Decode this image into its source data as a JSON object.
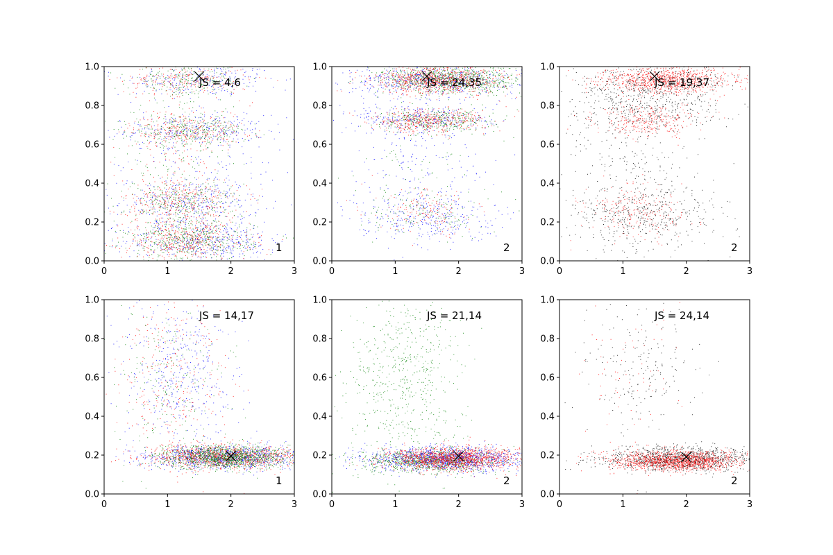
{
  "chart_data": [
    {
      "type": "scatter",
      "annotation": "JS = 4,6",
      "corner_label": "1",
      "xlim": [
        0,
        3
      ],
      "ylim": [
        0,
        1
      ],
      "xticks": [
        "0",
        "1",
        "2",
        "3"
      ],
      "yticks": [
        "0.0",
        "0.2",
        "0.4",
        "0.6",
        "0.8",
        "1.0"
      ],
      "marker": {
        "x": 1.5,
        "y": 0.95
      },
      "series": [
        {
          "color": "#0000ff",
          "clusters": [
            {
              "x": 1.55,
              "y": 0.93,
              "sx": 0.6,
              "sy": 0.04,
              "w": 0.15
            },
            {
              "x": 1.45,
              "y": 0.67,
              "sx": 0.55,
              "sy": 0.04,
              "w": 0.18
            },
            {
              "x": 1.35,
              "y": 0.3,
              "sx": 0.55,
              "sy": 0.06,
              "w": 0.22
            },
            {
              "x": 1.6,
              "y": 0.1,
              "sx": 0.65,
              "sy": 0.05,
              "w": 0.3
            },
            {
              "x": 1.5,
              "y": 0.5,
              "sx": 0.7,
              "sy": 0.28,
              "w": 0.15
            }
          ]
        },
        {
          "color": "#ff0000",
          "clusters": [
            {
              "x": 1.3,
              "y": 0.93,
              "sx": 0.5,
              "sy": 0.04,
              "w": 0.15
            },
            {
              "x": 1.3,
              "y": 0.67,
              "sx": 0.45,
              "sy": 0.04,
              "w": 0.18
            },
            {
              "x": 1.2,
              "y": 0.3,
              "sx": 0.45,
              "sy": 0.06,
              "w": 0.22
            },
            {
              "x": 1.3,
              "y": 0.1,
              "sx": 0.5,
              "sy": 0.05,
              "w": 0.3
            },
            {
              "x": 1.2,
              "y": 0.5,
              "sx": 0.5,
              "sy": 0.28,
              "w": 0.15
            }
          ]
        },
        {
          "color": "#008000",
          "clusters": [
            {
              "x": 1.3,
              "y": 0.93,
              "sx": 0.45,
              "sy": 0.04,
              "w": 0.15
            },
            {
              "x": 1.35,
              "y": 0.67,
              "sx": 0.45,
              "sy": 0.04,
              "w": 0.2
            },
            {
              "x": 1.25,
              "y": 0.3,
              "sx": 0.45,
              "sy": 0.06,
              "w": 0.2
            },
            {
              "x": 1.35,
              "y": 0.1,
              "sx": 0.5,
              "sy": 0.05,
              "w": 0.3
            },
            {
              "x": 1.2,
              "y": 0.5,
              "sx": 0.5,
              "sy": 0.28,
              "w": 0.15
            }
          ]
        }
      ]
    },
    {
      "type": "scatter",
      "annotation": "JS = 24,35",
      "corner_label": "2",
      "xlim": [
        0,
        3
      ],
      "ylim": [
        0,
        1
      ],
      "xticks": [
        "0",
        "1",
        "2",
        "3"
      ],
      "yticks": [
        "0.0",
        "0.2",
        "0.4",
        "0.6",
        "0.8",
        "1.0"
      ],
      "marker": {
        "x": 1.5,
        "y": 0.95
      },
      "series": [
        {
          "color": "#0000ff",
          "clusters": [
            {
              "x": 1.6,
              "y": 0.93,
              "sx": 0.65,
              "sy": 0.035,
              "w": 0.4
            },
            {
              "x": 1.5,
              "y": 0.73,
              "sx": 0.55,
              "sy": 0.035,
              "w": 0.2
            },
            {
              "x": 1.5,
              "y": 0.23,
              "sx": 0.55,
              "sy": 0.06,
              "w": 0.2
            },
            {
              "x": 1.3,
              "y": 0.55,
              "sx": 0.6,
              "sy": 0.25,
              "w": 0.2
            }
          ]
        },
        {
          "color": "#008000",
          "clusters": [
            {
              "x": 1.9,
              "y": 0.93,
              "sx": 0.55,
              "sy": 0.035,
              "w": 0.6
            },
            {
              "x": 1.65,
              "y": 0.72,
              "sx": 0.45,
              "sy": 0.03,
              "w": 0.25
            },
            {
              "x": 1.5,
              "y": 0.25,
              "sx": 0.45,
              "sy": 0.06,
              "w": 0.1
            },
            {
              "x": 1.3,
              "y": 0.5,
              "sx": 0.5,
              "sy": 0.2,
              "w": 0.05
            }
          ]
        },
        {
          "color": "#ff0000",
          "clusters": [
            {
              "x": 1.7,
              "y": 0.93,
              "sx": 0.5,
              "sy": 0.035,
              "w": 0.6
            },
            {
              "x": 1.5,
              "y": 0.72,
              "sx": 0.45,
              "sy": 0.03,
              "w": 0.3
            },
            {
              "x": 1.5,
              "y": 0.25,
              "sx": 0.4,
              "sy": 0.06,
              "w": 0.1
            }
          ]
        }
      ]
    },
    {
      "type": "scatter",
      "annotation": "JS = 19,37",
      "corner_label": "2",
      "xlim": [
        0,
        3
      ],
      "ylim": [
        0,
        1
      ],
      "xticks": [
        "0",
        "1",
        "2",
        "3"
      ],
      "yticks": [
        "0.0",
        "0.2",
        "0.4",
        "0.6",
        "0.8",
        "1.0"
      ],
      "marker": {
        "x": 1.5,
        "y": 0.95
      },
      "series": [
        {
          "color": "#000000",
          "clusters": [
            {
              "x": 1.6,
              "y": 0.92,
              "sx": 0.6,
              "sy": 0.04,
              "w": 0.25
            },
            {
              "x": 1.4,
              "y": 0.78,
              "sx": 0.55,
              "sy": 0.06,
              "w": 0.25
            },
            {
              "x": 1.3,
              "y": 0.24,
              "sx": 0.6,
              "sy": 0.08,
              "w": 0.3
            },
            {
              "x": 1.2,
              "y": 0.5,
              "sx": 0.6,
              "sy": 0.25,
              "w": 0.2
            }
          ]
        },
        {
          "color": "#ff0000",
          "clusters": [
            {
              "x": 1.7,
              "y": 0.93,
              "sx": 0.5,
              "sy": 0.035,
              "w": 0.65
            },
            {
              "x": 1.4,
              "y": 0.72,
              "sx": 0.4,
              "sy": 0.04,
              "w": 0.2
            },
            {
              "x": 1.2,
              "y": 0.25,
              "sx": 0.4,
              "sy": 0.07,
              "w": 0.15
            }
          ]
        }
      ]
    },
    {
      "type": "scatter",
      "annotation": "JS = 14,17",
      "corner_label": "1",
      "xlim": [
        0,
        3
      ],
      "ylim": [
        0,
        1
      ],
      "xticks": [
        "0",
        "1",
        "2",
        "3"
      ],
      "yticks": [
        "0.0",
        "0.2",
        "0.4",
        "0.6",
        "0.8",
        "1.0"
      ],
      "marker": {
        "x": 2.0,
        "y": 0.195
      },
      "series": [
        {
          "color": "#0000ff",
          "clusters": [
            {
              "x": 1.9,
              "y": 0.19,
              "sx": 0.6,
              "sy": 0.03,
              "w": 0.7
            },
            {
              "x": 1.2,
              "y": 0.6,
              "sx": 0.45,
              "sy": 0.22,
              "w": 0.3
            }
          ]
        },
        {
          "color": "#ff0000",
          "clusters": [
            {
              "x": 1.9,
              "y": 0.19,
              "sx": 0.6,
              "sy": 0.03,
              "w": 0.8
            },
            {
              "x": 1.1,
              "y": 0.6,
              "sx": 0.45,
              "sy": 0.22,
              "w": 0.2
            }
          ]
        },
        {
          "color": "#008000",
          "clusters": [
            {
              "x": 1.9,
              "y": 0.19,
              "sx": 0.5,
              "sy": 0.03,
              "w": 0.85
            },
            {
              "x": 1.1,
              "y": 0.6,
              "sx": 0.45,
              "sy": 0.22,
              "w": 0.15
            }
          ]
        }
      ]
    },
    {
      "type": "scatter",
      "annotation": "JS = 21,14",
      "corner_label": "2",
      "xlim": [
        0,
        3
      ],
      "ylim": [
        0,
        1
      ],
      "xticks": [
        "0",
        "1",
        "2",
        "3"
      ],
      "yticks": [
        "0.0",
        "0.2",
        "0.4",
        "0.6",
        "0.8",
        "1.0"
      ],
      "marker": {
        "x": 2.0,
        "y": 0.195
      },
      "series": [
        {
          "color": "#0000ff",
          "clusters": [
            {
              "x": 1.8,
              "y": 0.18,
              "sx": 0.6,
              "sy": 0.03,
              "w": 1.0
            }
          ]
        },
        {
          "color": "#008000",
          "clusters": [
            {
              "x": 1.5,
              "y": 0.17,
              "sx": 0.55,
              "sy": 0.03,
              "w": 0.55
            },
            {
              "x": 1.15,
              "y": 0.55,
              "sx": 0.45,
              "sy": 0.25,
              "w": 0.45
            }
          ]
        },
        {
          "color": "#ff0000",
          "clusters": [
            {
              "x": 1.9,
              "y": 0.18,
              "sx": 0.5,
              "sy": 0.03,
              "w": 1.0
            }
          ]
        }
      ]
    },
    {
      "type": "scatter",
      "annotation": "JS = 24,14",
      "corner_label": "2",
      "xlim": [
        0,
        3
      ],
      "ylim": [
        0,
        1
      ],
      "xticks": [
        "0",
        "1",
        "2",
        "3"
      ],
      "yticks": [
        "0.0",
        "0.2",
        "0.4",
        "0.6",
        "0.8",
        "1.0"
      ],
      "marker": {
        "x": 2.0,
        "y": 0.19
      },
      "series": [
        {
          "color": "#000000",
          "clusters": [
            {
              "x": 1.9,
              "y": 0.18,
              "sx": 0.6,
              "sy": 0.03,
              "w": 0.85
            },
            {
              "x": 1.3,
              "y": 0.6,
              "sx": 0.45,
              "sy": 0.2,
              "w": 0.15
            }
          ]
        },
        {
          "color": "#ff0000",
          "clusters": [
            {
              "x": 1.85,
              "y": 0.17,
              "sx": 0.5,
              "sy": 0.025,
              "w": 0.95
            },
            {
              "x": 1.2,
              "y": 0.6,
              "sx": 0.4,
              "sy": 0.2,
              "w": 0.05
            }
          ]
        }
      ]
    }
  ]
}
